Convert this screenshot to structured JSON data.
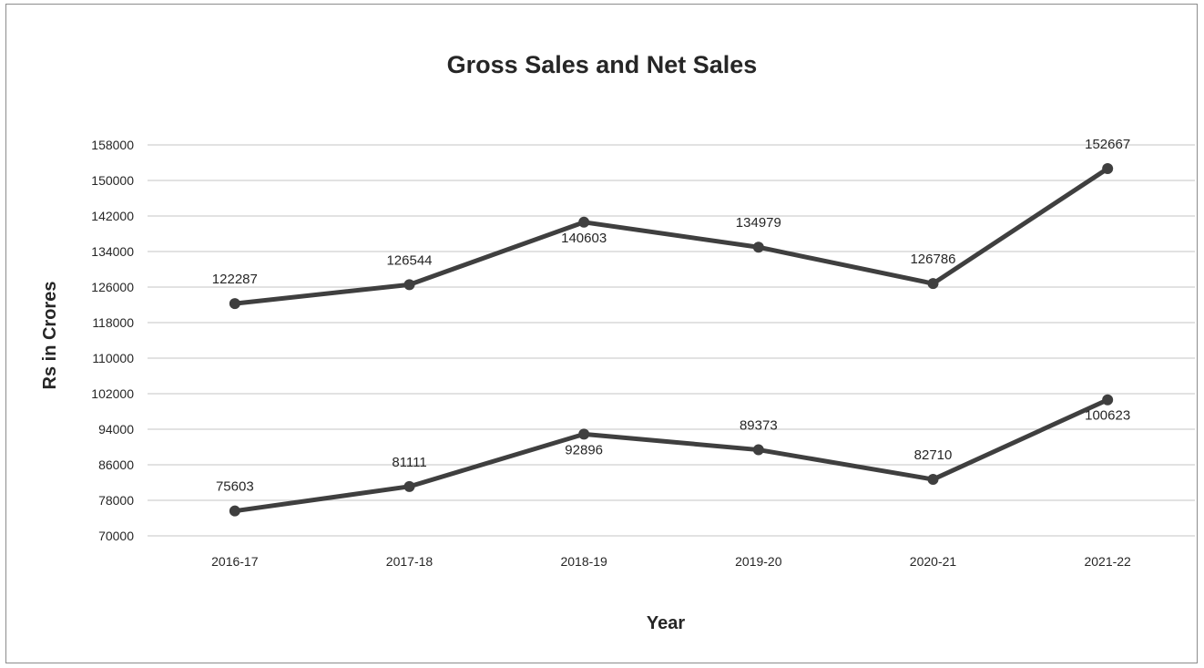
{
  "chart_data": {
    "type": "line",
    "title": "Gross Sales and Net Sales",
    "xlabel": "Year",
    "ylabel": "Rs in Crores",
    "categories": [
      "2016-17",
      "2017-18",
      "2018-19",
      "2019-20",
      "2020-21",
      "2021-22"
    ],
    "y_ticks": [
      "70000",
      "78000",
      "86000",
      "94000",
      "102000",
      "110000",
      "118000",
      "126000",
      "134000",
      "142000",
      "150000",
      "158000"
    ],
    "ylim": [
      70000,
      158000
    ],
    "grid": true,
    "series": [
      {
        "values": [
          122287,
          126544,
          140603,
          134979,
          126786,
          152667
        ],
        "labels": [
          "122287",
          "126544",
          "140603",
          "134979",
          "126786",
          "152667"
        ],
        "color": "#3f3f3f"
      },
      {
        "values": [
          75603,
          81111,
          92896,
          89373,
          82710,
          100623
        ],
        "labels": [
          "75603",
          "81111",
          "92896",
          "89373",
          "82710",
          "100623"
        ],
        "color": "#3f3f3f"
      }
    ]
  }
}
